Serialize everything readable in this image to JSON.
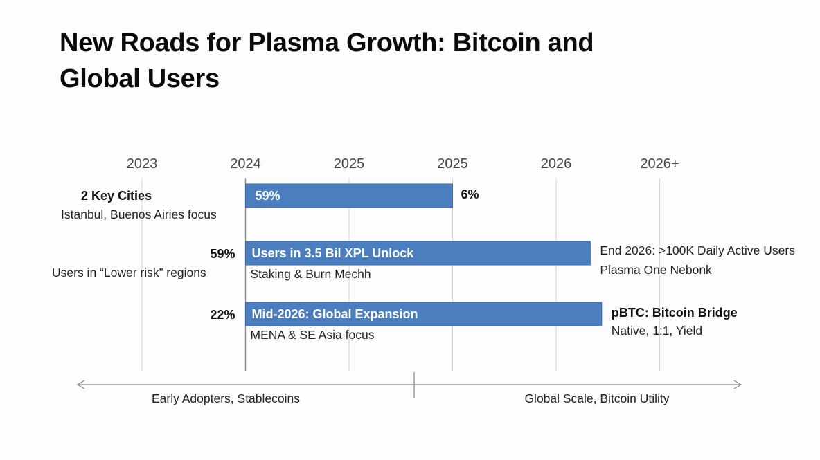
{
  "title": "New Roads for Plasma Growth: Bitcoin and Global Users",
  "colors": {
    "bar": "#4a7ebf",
    "bar_border": "#3d6aa6",
    "grid": "#d4d4d4",
    "grid_emphasis": "#8a8a8a",
    "axis_arrow": "#8a8a8a"
  },
  "chart_data": {
    "type": "gantt-timeline",
    "title": "New Roads for Plasma Growth: Bitcoin and Global Users",
    "x_ticks": [
      "2023",
      "2024",
      "2025",
      "2025",
      "2026",
      "2026+"
    ],
    "grid": true,
    "rows": [
      {
        "left_title": "2 Key Cities",
        "left_subtitle": "Istanbul, Buenos Airies focus",
        "bar_label": "59%",
        "bar_sublabel": "",
        "start_tick": 1,
        "end_tick": 3,
        "right_title": "6%",
        "right_subtitle": ""
      },
      {
        "left_title": "59%",
        "left_subtitle": "Users in “Lower risk” regions",
        "bar_label": "Users in 3.5 Bil XPL Unlock",
        "bar_sublabel": "Staking & Burn Mechh",
        "start_tick": 1,
        "end_tick": 4.33,
        "right_title": "End 2026: >100K Daily Active Users",
        "right_subtitle": "Plasma One Nebonk"
      },
      {
        "left_title": "22%",
        "left_subtitle": "",
        "bar_label": "Mid-2026: Global Expansion",
        "bar_sublabel": "MENA & SE Asia focus",
        "start_tick": 1,
        "end_tick": 4.44,
        "right_title": "pBTC: Bitcoin Bridge",
        "right_subtitle": "Native, 1:1, Yield"
      }
    ],
    "phases": [
      {
        "label": "Early Adopters, Stablecoins",
        "from_tick": -0.6,
        "to_tick": 2.6
      },
      {
        "label": "Global Scale, Bitcoin Utility",
        "from_tick": 2.6,
        "to_tick": 5.8
      }
    ]
  }
}
